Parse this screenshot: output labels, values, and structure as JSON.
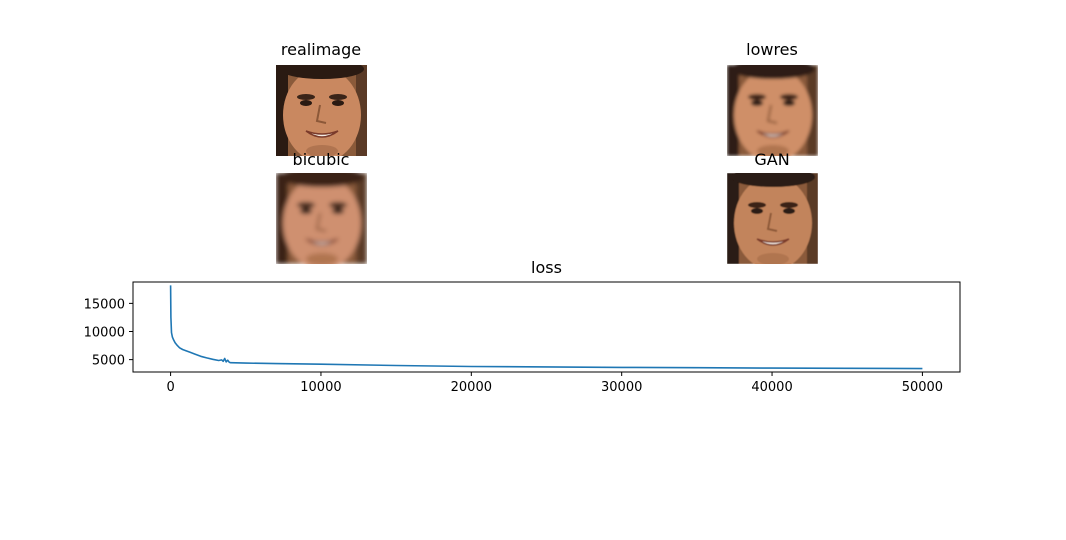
{
  "panels": [
    {
      "id": "realimage",
      "title": "realimage",
      "blur": 0.0,
      "skin": "#c98860",
      "hair": "#2a1a12"
    },
    {
      "id": "lowres",
      "title": "lowres",
      "blur": 1.6,
      "skin": "#cf8f68",
      "hair": "#2e1d14"
    },
    {
      "id": "bicubic",
      "title": "bicubic",
      "blur": 2.4,
      "skin": "#cf9070",
      "hair": "#3a2418"
    },
    {
      "id": "gan",
      "title": "GAN",
      "blur": 0.4,
      "skin": "#c2845c",
      "hair": "#2a1a12"
    }
  ],
  "chart_data": {
    "type": "line",
    "title": "loss",
    "xlabel": "",
    "ylabel": "",
    "xlim": [
      -2500,
      52500
    ],
    "ylim": [
      2800,
      18800
    ],
    "xticks": [
      0,
      10000,
      20000,
      30000,
      40000,
      50000
    ],
    "yticks": [
      5000,
      10000,
      15000
    ],
    "grid": false,
    "series": [
      {
        "color": "#1f77b4",
        "x": [
          0,
          20,
          60,
          120,
          200,
          300,
          450,
          600,
          800,
          1000,
          1300,
          1600,
          2000,
          2400,
          2800,
          3200,
          3400,
          3500,
          3600,
          3700,
          3800,
          3900,
          4000,
          5000,
          7000,
          10000,
          15000,
          20000,
          25000,
          30000,
          35000,
          40000,
          45000,
          50000
        ],
        "y": [
          18200,
          12500,
          9800,
          9000,
          8500,
          8000,
          7500,
          7100,
          6800,
          6600,
          6300,
          6000,
          5600,
          5300,
          5050,
          4850,
          4950,
          4700,
          5200,
          4600,
          4900,
          4550,
          4450,
          4380,
          4300,
          4180,
          3950,
          3780,
          3700,
          3620,
          3560,
          3500,
          3450,
          3400
        ]
      }
    ]
  }
}
